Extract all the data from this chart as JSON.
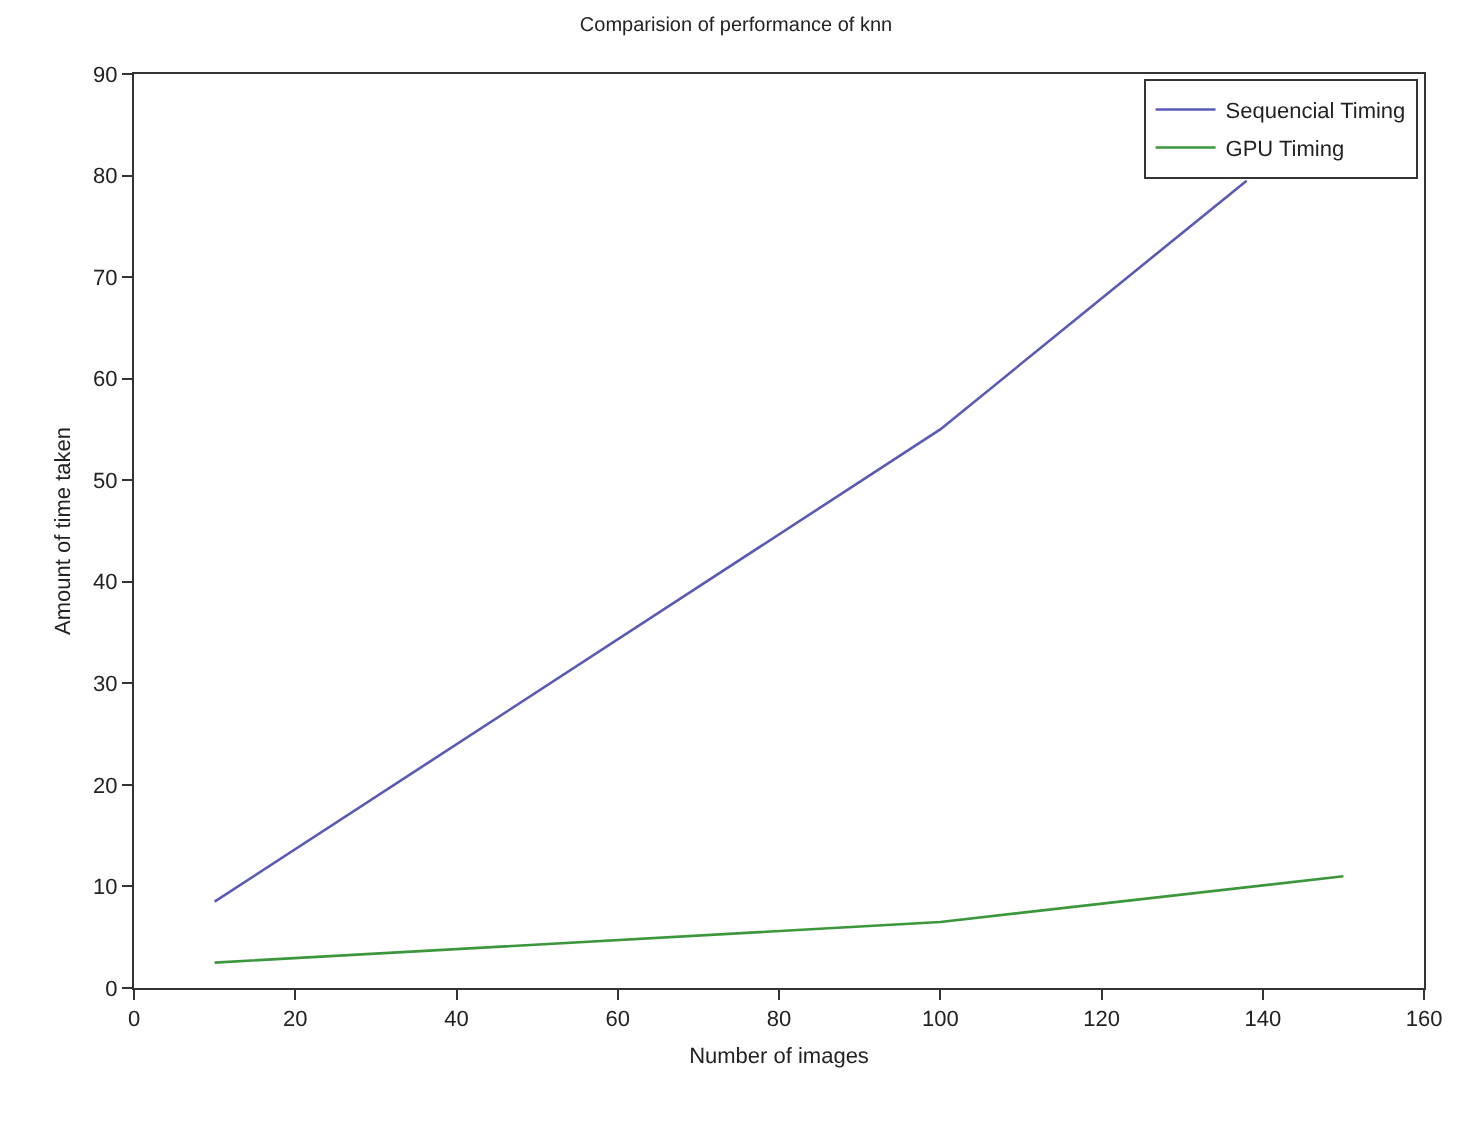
{
  "chart_data": {
    "type": "line",
    "title": "Comparision of performance of knn",
    "xlabel": "Number of images",
    "ylabel": "Amount of time taken",
    "xlim": [
      0,
      160
    ],
    "xticks": [
      0,
      20,
      40,
      60,
      80,
      100,
      120,
      140,
      160
    ],
    "ylim": [
      0,
      90
    ],
    "yticks": [
      0,
      10,
      20,
      30,
      40,
      50,
      60,
      70,
      80,
      90
    ],
    "series": [
      {
        "name": "Sequencial Timing",
        "color": "#5a5ab4",
        "x": [
          10,
          100,
          138
        ],
        "values": [
          8.5,
          55,
          79.5
        ]
      },
      {
        "name": "GPU Timing",
        "color": "#3c963c",
        "x": [
          10,
          100,
          150
        ],
        "values": [
          2.5,
          6.5,
          11
        ]
      }
    ],
    "grid": false,
    "legend": "top right",
    "marker": "none",
    "line_style": "solid"
  }
}
